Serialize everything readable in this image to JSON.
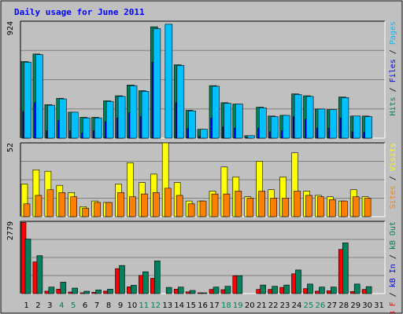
{
  "chart_data": {
    "type": "bar",
    "title": "Daily usage for June 2011",
    "colors": {
      "background": "#ffffff",
      "frame": "#c0c0c0",
      "plot_bg": "#c0c0c0",
      "title": "#0000ff",
      "hits": "#00805c",
      "files": "#0000ff",
      "pages": "#00c0ff",
      "visits": "#ffff00",
      "sites": "#ff8000",
      "kbf": "#ff0000",
      "kbin": "#0000ff",
      "kbout": "#00805c",
      "weekend": "#00805c",
      "weekday": "#000000",
      "separator": "#000000"
    },
    "x": [
      "1",
      "2",
      "3",
      "4",
      "5",
      "6",
      "7",
      "8",
      "9",
      "10",
      "11",
      "12",
      "13",
      "14",
      "15",
      "16",
      "17",
      "18",
      "19",
      "20",
      "21",
      "22",
      "23",
      "24",
      "25",
      "26",
      "27",
      "28",
      "29",
      "30",
      "31"
    ],
    "weekend_days": [
      4,
      5,
      11,
      12,
      18,
      19,
      25,
      26
    ],
    "panels": [
      {
        "name": "hits-files-pages",
        "ymax": 924,
        "ymax_label": "924",
        "legend": [
          {
            "text": "Hits",
            "color": "#00805c"
          },
          {
            "text": " / ",
            "color": "#000000"
          },
          {
            "text": "Files",
            "color": "#0000ff"
          },
          {
            "text": " / ",
            "color": "#000000"
          },
          {
            "text": "Pages",
            "color": "#00c0ff"
          }
        ],
        "series": [
          {
            "name": "Hits",
            "color": "#00805c",
            "values": [
              605,
              665,
              265,
              315,
              205,
              165,
              165,
              295,
              335,
              420,
              375,
              880,
              0,
              580,
              220,
              70,
              415,
              280,
              270,
              20,
              245,
              175,
              180,
              350,
              335,
              230,
              225,
              325,
              175,
              175,
              0
            ]
          },
          {
            "name": "Files",
            "color": "#0000ff",
            "values": [
              210,
              280,
              60,
              140,
              60,
              40,
              60,
              130,
              160,
              200,
              170,
              600,
              0,
              280,
              75,
              15,
              160,
              90,
              80,
              5,
              80,
              50,
              60,
              170,
              150,
              80,
              80,
              160,
              50,
              45,
              0
            ]
          },
          {
            "name": "Pages",
            "color": "#00c0ff",
            "values": [
              600,
              660,
              260,
              310,
              205,
              160,
              160,
              290,
              330,
              415,
              370,
              865,
              900,
              575,
              215,
              70,
              410,
              275,
              270,
              20,
              240,
              170,
              180,
              345,
              330,
              230,
              225,
              320,
              175,
              170,
              0
            ]
          }
        ]
      },
      {
        "name": "visits-sites",
        "ymax": 52,
        "ymax_label": "52",
        "legend": [
          {
            "text": "Sites",
            "color": "#ff8000"
          },
          {
            "text": " / ",
            "color": "#000000"
          },
          {
            "text": "Visits",
            "color": "#ffff00"
          }
        ],
        "series": [
          {
            "name": "Visits",
            "color": "#ffff00",
            "values": [
              23,
              33,
              32,
              22,
              17,
              7,
              11,
              10,
              23,
              38,
              24,
              30,
              52,
              24,
              11,
              11,
              18,
              35,
              28,
              14,
              39,
              19,
              28,
              45,
              18,
              15,
              14,
              11,
              19,
              14,
              0
            ]
          },
          {
            "name": "Sites",
            "color": "#ff8000",
            "values": [
              9,
              15,
              19,
              17,
              14,
              6,
              10,
              10,
              17,
              14,
              16,
              17,
              20,
              15,
              9,
              11,
              16,
              16,
              18,
              13,
              18,
              13,
              13,
              18,
              15,
              14,
              12,
              11,
              14,
              13,
              0
            ]
          }
        ]
      },
      {
        "name": "kbf-kbin-kbout",
        "ymax": 2779,
        "ymax_label": "2779",
        "legend": [
          {
            "text": "kB F",
            "color": "#ff0000"
          },
          {
            "text": " / ",
            "color": "#000000"
          },
          {
            "text": "kB In",
            "color": "#0000ff"
          },
          {
            "text": " / ",
            "color": "#000000"
          },
          {
            "text": "kB Out",
            "color": "#00805c"
          }
        ],
        "series": [
          {
            "name": "kB F",
            "color": "#ff0000",
            "values": [
              2740,
              1220,
              95,
              170,
              60,
              25,
              50,
              95,
              960,
              260,
              700,
              590,
              0,
              170,
              65,
              10,
              160,
              150,
              690,
              0,
              160,
              160,
              240,
              760,
              190,
              95,
              110,
              1700,
              80,
              160,
              0
            ]
          },
          {
            "name": "kB In",
            "color": "#0000ff",
            "values": [
              0,
              0,
              0,
              0,
              0,
              0,
              0,
              0,
              0,
              0,
              0,
              0,
              0,
              0,
              0,
              0,
              0,
              0,
              0,
              0,
              0,
              0,
              0,
              0,
              0,
              0,
              0,
              0,
              0,
              0,
              0
            ]
          },
          {
            "name": "kB Out",
            "color": "#00805c",
            "values": [
              2100,
              1460,
              250,
              440,
              210,
              90,
              140,
              170,
              1080,
              320,
              840,
              1260,
              240,
              250,
              120,
              25,
              250,
              280,
              690,
              0,
              330,
              280,
              330,
              910,
              370,
              250,
              250,
              1950,
              370,
              270,
              0
            ]
          }
        ]
      }
    ]
  }
}
